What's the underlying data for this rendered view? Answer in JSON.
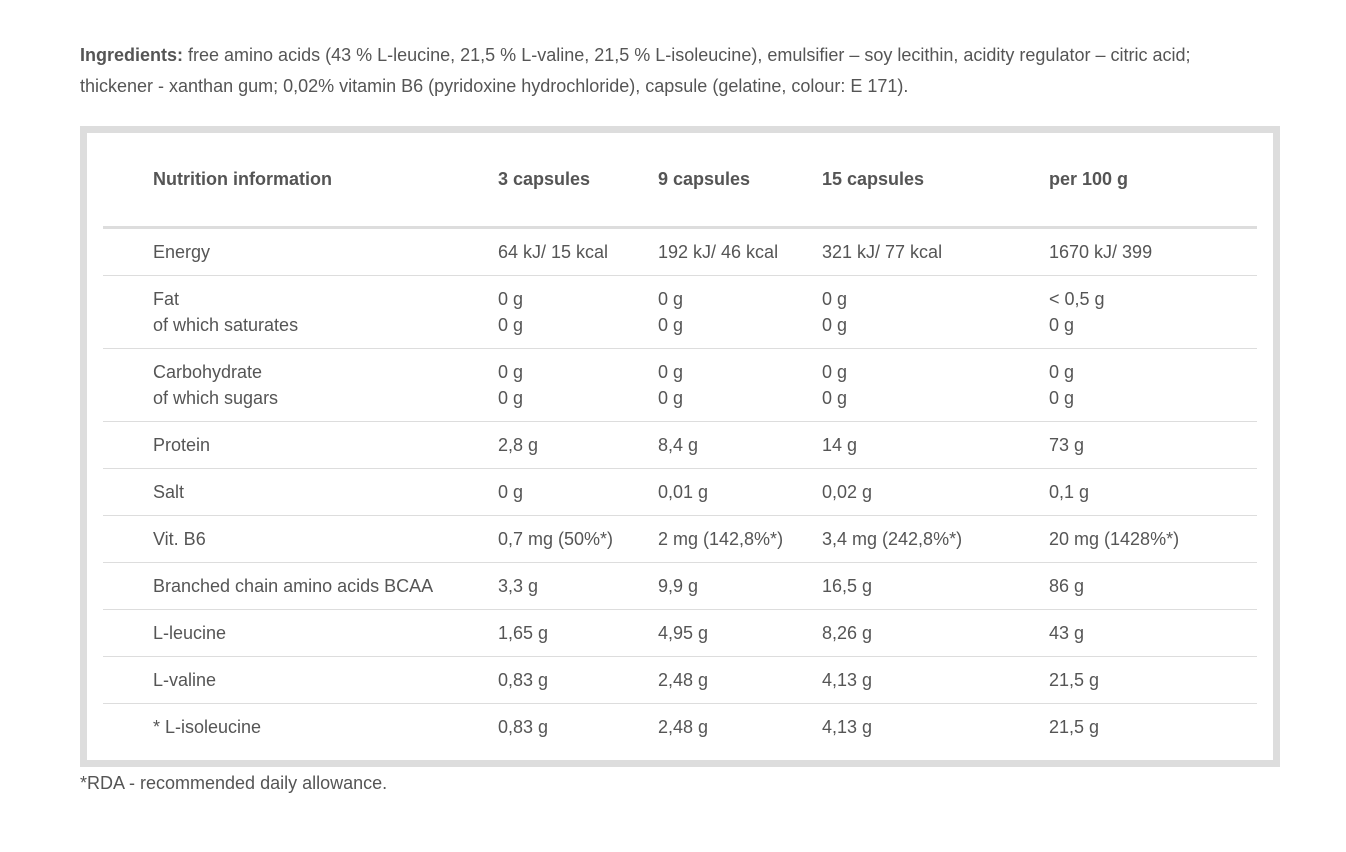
{
  "ingredients": {
    "label": "Ingredients:",
    "text": " free amino acids (43 % L-leucine, 21,5 % L-valine, 21,5 % L-isoleucine), emulsifier – soy lecithin, acidity regulator – citric acid; thickener - xanthan gum;  0,02% vitamin B6 (pyridoxine hydrochloride), capsule (gelatine, colour: E 171)."
  },
  "table": {
    "headers": [
      "Nutrition information",
      "3 capsules",
      "9 capsules",
      "15 capsules",
      "per 100 g"
    ],
    "rows": [
      {
        "name": [
          "Energy"
        ],
        "v1": [
          "64 kJ/ 15 kcal"
        ],
        "v2": [
          "192 kJ/ 46 kcal"
        ],
        "v3": [
          "321 kJ/ 77 kcal"
        ],
        "v4": [
          "1670 kJ/ 399"
        ]
      },
      {
        "name": [
          "Fat",
          "of which saturates"
        ],
        "v1": [
          "0 g",
          "0 g"
        ],
        "v2": [
          "0 g",
          "0 g"
        ],
        "v3": [
          "0 g",
          "0 g"
        ],
        "v4": [
          "< 0,5 g",
          "0 g"
        ]
      },
      {
        "name": [
          "Carbohydrate",
          "of which sugars"
        ],
        "v1": [
          "0 g",
          "0 g"
        ],
        "v2": [
          "0 g",
          "0 g"
        ],
        "v3": [
          "0 g",
          "0 g"
        ],
        "v4": [
          "0 g",
          "0 g"
        ]
      },
      {
        "name": [
          "Protein"
        ],
        "v1": [
          "2,8 g"
        ],
        "v2": [
          "8,4 g"
        ],
        "v3": [
          "14 g"
        ],
        "v4": [
          "73 g"
        ]
      },
      {
        "name": [
          "Salt"
        ],
        "v1": [
          "0 g"
        ],
        "v2": [
          "0,01 g"
        ],
        "v3": [
          "0,02 g"
        ],
        "v4": [
          "0,1 g"
        ]
      },
      {
        "name": [
          "Vit. B6"
        ],
        "v1": [
          "0,7 mg (50%*)"
        ],
        "v2": [
          "2 mg (142,8%*)"
        ],
        "v3": [
          "3,4 mg (242,8%*)"
        ],
        "v4": [
          "20 mg (1428%*)"
        ]
      },
      {
        "name": [
          "Branched chain amino acids BCAA"
        ],
        "v1": [
          "3,3 g"
        ],
        "v2": [
          "9,9 g"
        ],
        "v3": [
          "16,5 g"
        ],
        "v4": [
          "86 g"
        ]
      },
      {
        "name": [
          "L-leucine"
        ],
        "v1": [
          "1,65 g"
        ],
        "v2": [
          "4,95 g"
        ],
        "v3": [
          "8,26 g"
        ],
        "v4": [
          "43 g"
        ]
      },
      {
        "name": [
          "L-valine"
        ],
        "v1": [
          "0,83 g"
        ],
        "v2": [
          "2,48 g"
        ],
        "v3": [
          "4,13 g"
        ],
        "v4": [
          "21,5 g"
        ]
      },
      {
        "name": [
          "* L-isoleucine"
        ],
        "v1": [
          "0,83 g"
        ],
        "v2": [
          "2,48 g"
        ],
        "v3": [
          "4,13 g"
        ],
        "v4": [
          "21,5 g"
        ]
      }
    ]
  },
  "footnote": "*RDA - recommended daily allowance."
}
